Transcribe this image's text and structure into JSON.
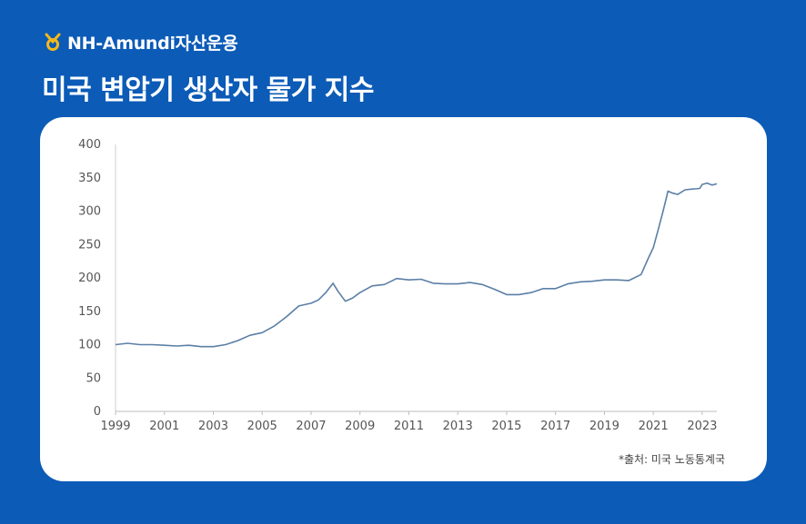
{
  "brand": {
    "name": "NH-Amundi자산운용",
    "logo_icon": "nh-logo-icon",
    "logo_color": "#f5b918"
  },
  "title": "미국 변압기 생산자 물가 지수",
  "source": "*출처: 미국 노동통계국",
  "colors": {
    "background": "#0b5bb7",
    "card": "#ffffff",
    "line": "#5b7fa6"
  },
  "chart_data": {
    "type": "line",
    "title": "미국 변압기 생산자 물가 지수",
    "xlabel": "",
    "ylabel": "",
    "xlim": [
      1999,
      2023.6
    ],
    "ylim": [
      0,
      400
    ],
    "x_ticks": [
      "1999",
      "2001",
      "2003",
      "2005",
      "2007",
      "2009",
      "2011",
      "2013",
      "2015",
      "2017",
      "2019",
      "2021",
      "2023"
    ],
    "y_ticks": [
      "0",
      "50",
      "100",
      "150",
      "200",
      "250",
      "300",
      "350",
      "400"
    ],
    "grid": "horizontal",
    "legend": "none",
    "series": [
      {
        "x": [
          1999.0,
          1999.5,
          2000.0,
          2000.5,
          2001.0,
          2001.5,
          2002.0,
          2002.5,
          2003.0,
          2003.5,
          2004.0,
          2004.5,
          2005.0,
          2005.5,
          2006.0,
          2006.5,
          2007.0,
          2007.3,
          2007.6,
          2007.9,
          2008.1,
          2008.4,
          2008.7,
          2009.0,
          2009.5,
          2010.0,
          2010.5,
          2011.0,
          2011.5,
          2012.0,
          2012.5,
          2013.0,
          2013.5,
          2014.0,
          2014.5,
          2015.0,
          2015.5,
          2016.0,
          2016.5,
          2017.0,
          2017.5,
          2018.0,
          2018.5,
          2019.0,
          2019.5,
          2020.0,
          2020.5,
          2020.8,
          2021.0,
          2021.2,
          2021.4,
          2021.6,
          2021.8,
          2022.0,
          2022.3,
          2022.6,
          2022.9,
          2023.0,
          2023.2,
          2023.4,
          2023.6
        ],
        "y": [
          100,
          102,
          100,
          100,
          99,
          98,
          99,
          97,
          97,
          100,
          106,
          114,
          118,
          128,
          142,
          158,
          162,
          167,
          178,
          192,
          180,
          165,
          170,
          178,
          188,
          190,
          199,
          197,
          198,
          192,
          191,
          191,
          193,
          190,
          183,
          175,
          175,
          178,
          184,
          184,
          191,
          194,
          195,
          197,
          197,
          196,
          205,
          230,
          245,
          272,
          300,
          330,
          327,
          325,
          332,
          333,
          334,
          340,
          342,
          339,
          341
        ]
      }
    ]
  }
}
